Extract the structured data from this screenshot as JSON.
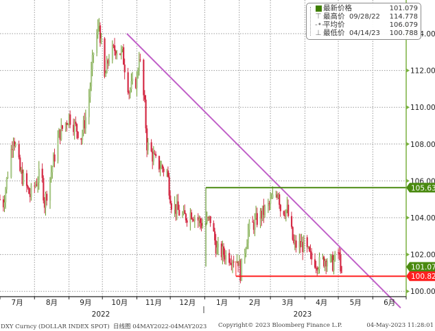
{
  "legend": {
    "rows": [
      {
        "icon": "green-square-icon",
        "label": "最新价格",
        "date": "",
        "value": "101.079"
      },
      {
        "icon": "high-marker-icon",
        "label": "最高价",
        "date": "09/28/22",
        "value": "114.778"
      },
      {
        "icon": "average-marker-icon",
        "label": "平均价",
        "date": "",
        "value": "106.079"
      },
      {
        "icon": "low-marker-icon",
        "label": "最低价",
        "date": "04/14/23",
        "value": "100.788"
      }
    ]
  },
  "footer": {
    "security": "DXY Curncy (DOLLAR INDEX SPOT)  日线图 04MAY2022-04MAY2023",
    "copyright": "Copyright© 2023 Bloomberg Finance L.P.",
    "timestamp": "04-May-2023 11:28:01"
  },
  "chart_data": {
    "type": "candlestick",
    "title": "",
    "xlabel": "",
    "ylabel": "",
    "x_range": [
      "2022-07-01",
      "2023-07-01"
    ],
    "ylim": [
      99,
      114.9
    ],
    "y_ticks": [
      "100.000",
      "102.000",
      "104.000",
      "106.000",
      "108.000",
      "110.000",
      "112.000",
      "114.000"
    ],
    "y_tick_values": [
      100,
      102,
      104,
      106,
      108,
      110,
      112,
      114
    ],
    "month_labels": [
      "7月",
      "8月",
      "9月",
      "10月",
      "11月",
      "12月",
      "1月",
      "2月",
      "3月",
      "4月",
      "5月",
      "6月"
    ],
    "year_labels": [
      "2022",
      "2023"
    ],
    "grid": true,
    "colors": {
      "up": "#a9c98a",
      "up_edge": "#6a9a2a",
      "down": "#d42a45",
      "axis": "#7ab040",
      "trendline": "#c060c8",
      "resistance": "#4a8a10",
      "support": "#ff2020"
    },
    "series": [
      {
        "values": [
          [
            "2022-07-01",
            105.0
          ],
          [
            "2022-07-04",
            104.8
          ],
          [
            "2022-07-13",
            108.5
          ],
          [
            "2022-07-19",
            106.5
          ],
          [
            "2022-07-28",
            105.2
          ],
          [
            "2022-08-07",
            106.5
          ],
          [
            "2022-08-10",
            104.8
          ],
          [
            "2022-08-23",
            108.5
          ],
          [
            "2022-09-01",
            109.5
          ],
          [
            "2022-09-12",
            108.4
          ],
          [
            "2022-09-18",
            110.0
          ],
          [
            "2022-09-23",
            113.0
          ],
          [
            "2022-09-28",
            114.5
          ],
          [
            "2022-10-03",
            111.5
          ],
          [
            "2022-10-07",
            112.8
          ],
          [
            "2022-10-13",
            113.2
          ],
          [
            "2022-10-19",
            112.9
          ],
          [
            "2022-10-25",
            110.9
          ],
          [
            "2022-11-01",
            111.5
          ],
          [
            "2022-11-03",
            112.9
          ],
          [
            "2022-11-08",
            110.0
          ],
          [
            "2022-11-10",
            108.0
          ],
          [
            "2022-11-18",
            107.0
          ],
          [
            "2022-11-28",
            106.5
          ],
          [
            "2022-12-02",
            104.8
          ],
          [
            "2022-12-13",
            104.0
          ],
          [
            "2022-12-20",
            104.3
          ],
          [
            "2022-12-30",
            103.6
          ],
          [
            "2023-01-06",
            103.9
          ],
          [
            "2023-01-12",
            102.2
          ],
          [
            "2023-01-20",
            102.0
          ],
          [
            "2023-01-31",
            101.7
          ],
          [
            "2023-02-02",
            101.0
          ],
          [
            "2023-02-09",
            103.3
          ],
          [
            "2023-02-17",
            103.9
          ],
          [
            "2023-02-27",
            104.6
          ],
          [
            "2023-03-08",
            105.5
          ],
          [
            "2023-03-10",
            104.5
          ],
          [
            "2023-03-16",
            104.4
          ],
          [
            "2023-03-22",
            102.5
          ],
          [
            "2023-03-31",
            102.5
          ],
          [
            "2023-04-06",
            101.8
          ],
          [
            "2023-04-14",
            101.5
          ],
          [
            "2023-04-20",
            101.8
          ],
          [
            "2023-04-26",
            101.5
          ],
          [
            "2023-05-01",
            102.1
          ],
          [
            "2023-05-04",
            101.079
          ]
        ]
      }
    ],
    "annotations": {
      "trendline": {
        "from": [
          "2022-10-23",
          114.0
        ],
        "to": [
          "2023-06-26",
          99.1
        ]
      },
      "resistance": {
        "value": 105.631,
        "label": "105.631",
        "from": "2023-01-02"
      },
      "support": {
        "value": 100.82,
        "label": "100.820",
        "from": "2023-01-29"
      },
      "last_price_tag": "101.079"
    }
  }
}
